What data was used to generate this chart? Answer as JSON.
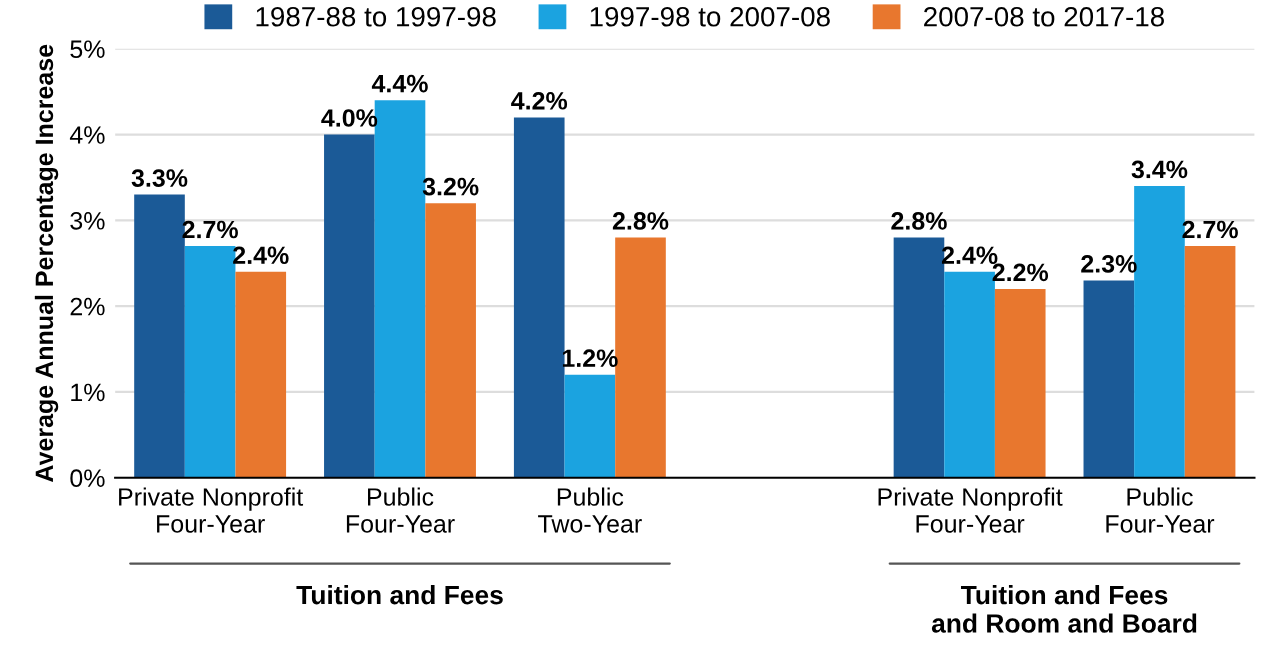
{
  "chart_data": {
    "type": "bar",
    "ylabel": "Average Annual Percentage Increase",
    "categories": [
      "Private Nonprofit\nFour-Year",
      "Public\nFour-Year",
      "Public\nTwo-Year",
      null,
      "Private Nonprofit\nFour-Year",
      "Public\nFour-Year"
    ],
    "series": [
      {
        "name": "1987-88 to 1997-98",
        "color": "#1b5a97",
        "values": [
          3.3,
          4.0,
          4.2,
          null,
          2.8,
          2.3
        ],
        "value_labels": [
          "3.3%",
          "4.0%",
          "4.2%",
          null,
          "2.8%",
          "2.3%"
        ]
      },
      {
        "name": "1997-98 to 2007-08",
        "color": "#1ba3e0",
        "values": [
          2.7,
          4.4,
          1.2,
          null,
          2.4,
          3.4
        ],
        "value_labels": [
          "2.7%",
          "4.4%",
          "1.2%",
          null,
          "2.4%",
          "3.4%"
        ]
      },
      {
        "name": "2007-08 to 2017-18",
        "color": "#e8772e",
        "values": [
          2.4,
          3.2,
          2.8,
          null,
          2.2,
          2.7
        ],
        "value_labels": [
          "2.4%",
          "3.2%",
          "2.8%",
          null,
          "2.2%",
          "2.7%"
        ]
      }
    ],
    "ylim": [
      0,
      5
    ],
    "yticks": [
      {
        "value": 0,
        "label": "0%"
      },
      {
        "value": 1,
        "label": "1%"
      },
      {
        "value": 2,
        "label": "2%"
      },
      {
        "value": 3,
        "label": "3%"
      },
      {
        "value": 4,
        "label": "4%"
      },
      {
        "value": 5,
        "label": "5%"
      }
    ],
    "grid": "y",
    "legend": "top",
    "annotations": [
      "Tuition and Fees",
      "Tuition and Fees\nand Room and Board"
    ]
  }
}
